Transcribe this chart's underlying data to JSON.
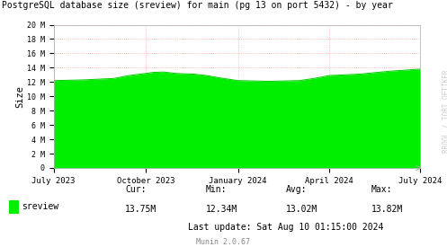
{
  "title": "PostgreSQL database size (sreview) for main (pg 13 on port 5432) - by year",
  "ylabel": "Size",
  "watermark": "RROOL / TOBI OETIKER",
  "footer_center": "Munin 2.0.67",
  "last_update": "Last update: Sat Aug 10 01:15:00 2024",
  "legend_label": "sreview",
  "fill_color": "#00ee00",
  "line_color": "#00cc00",
  "background_color": "#ffffff",
  "plot_bg_color": "#ffffff",
  "grid_color": "#ff9999",
  "grid_linestyle": ":",
  "ylim": [
    0,
    20000000
  ],
  "yticks": [
    0,
    2000000,
    4000000,
    6000000,
    8000000,
    10000000,
    12000000,
    14000000,
    16000000,
    18000000,
    20000000
  ],
  "ytick_labels": [
    "0",
    "2 M",
    "4 M",
    "6 M",
    "8 M",
    "10 M",
    "12 M",
    "14 M",
    "16 M",
    "18 M",
    "20 M"
  ],
  "xtick_labels": [
    "July 2023",
    "October 2023",
    "January 2024",
    "April 2024",
    "July 2024"
  ],
  "xtick_positions": [
    0,
    92,
    184,
    275,
    366
  ],
  "data_x": [
    0,
    15,
    30,
    60,
    75,
    92,
    100,
    110,
    122,
    140,
    153,
    165,
    184,
    200,
    215,
    230,
    245,
    260,
    275,
    290,
    305,
    320,
    335,
    350,
    366
  ],
  "data_y": [
    12200000,
    12250000,
    12300000,
    12500000,
    12900000,
    13200000,
    13350000,
    13400000,
    13200000,
    13100000,
    12900000,
    12600000,
    12200000,
    12150000,
    12100000,
    12150000,
    12200000,
    12500000,
    12900000,
    13000000,
    13100000,
    13300000,
    13500000,
    13650000,
    13800000
  ],
  "cur": "13.75M",
  "min": "12.34M",
  "avg": "13.02M",
  "max": "13.82M"
}
